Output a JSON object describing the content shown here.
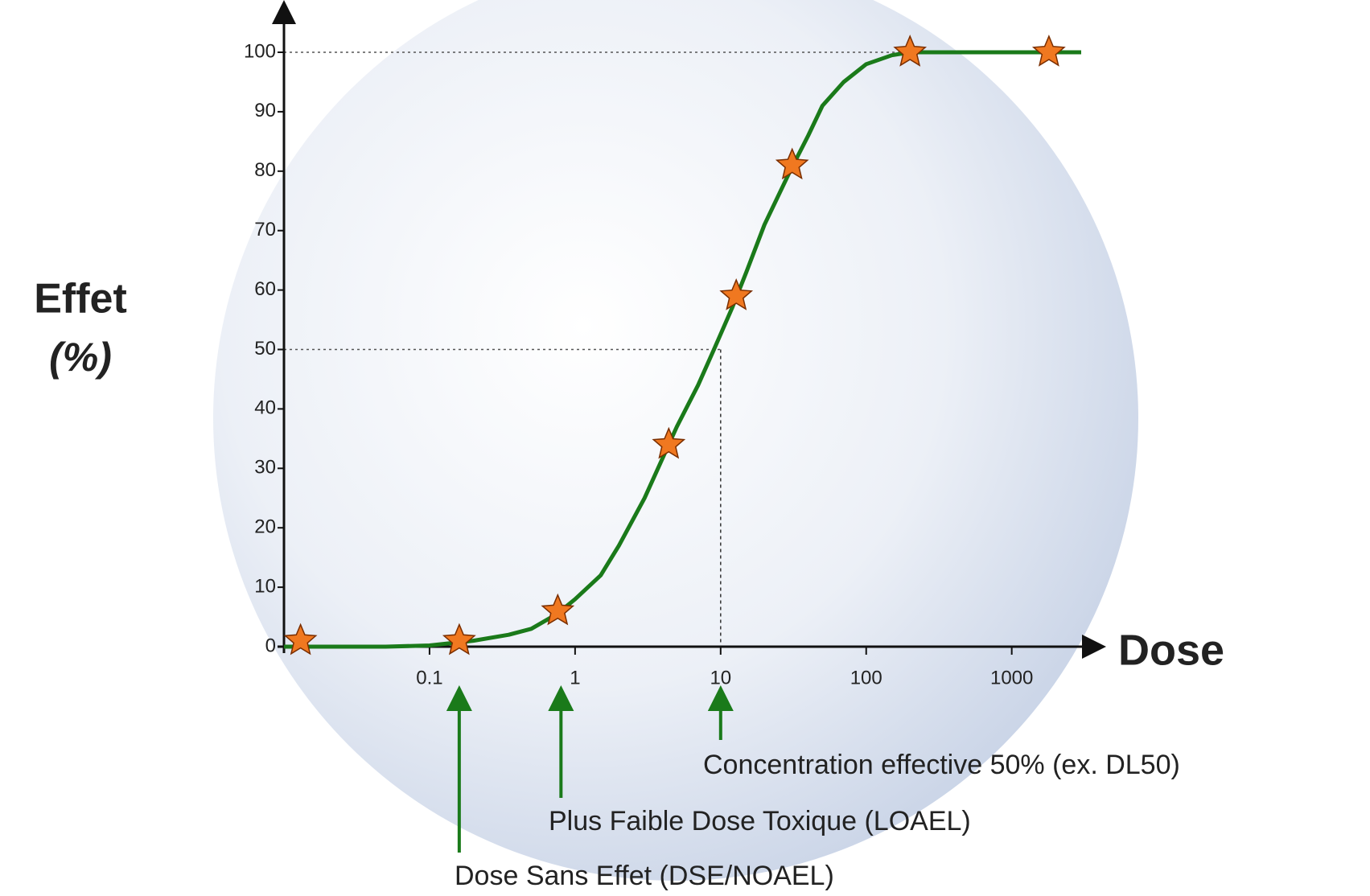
{
  "chart_data": {
    "type": "line",
    "y_label": [
      "Effet",
      "(%)"
    ],
    "x_label": "Dose",
    "log_x": true,
    "xlim": [
      0.01,
      3000
    ],
    "ylim": [
      0,
      100
    ],
    "xticks": [
      0.1,
      1,
      10,
      100,
      1000
    ],
    "yticks": [
      0,
      10,
      20,
      30,
      40,
      50,
      60,
      70,
      80,
      90,
      100
    ],
    "series": [
      {
        "color": "#1a7a1a",
        "x": [
          0.01,
          0.05,
          0.1,
          0.2,
          0.35,
          0.5,
          0.75,
          1,
          1.5,
          2,
          3,
          5,
          7,
          9,
          12,
          15,
          20,
          30,
          40,
          50,
          70,
          100,
          150,
          200,
          500,
          3000
        ],
        "values": [
          0,
          0,
          0.2,
          1,
          2,
          3,
          5.5,
          8,
          12,
          17,
          25,
          37,
          44,
          50,
          57,
          63,
          71,
          80,
          86,
          91,
          95,
          98,
          99.5,
          100,
          100,
          100
        ]
      },
      {
        "color": "#f07820",
        "marker": "star",
        "x": [
          0.013,
          0.16,
          0.76,
          4.4,
          12.8,
          31,
          200,
          1800
        ],
        "values": [
          1,
          1,
          6,
          34,
          59,
          81,
          100,
          100
        ]
      }
    ],
    "reference_lines": {
      "y": [
        100,
        50
      ],
      "x": 10
    },
    "annotations": [
      {
        "text": "Concentration effective 50% (ex. DL50)",
        "x": 10
      },
      {
        "text": "Plus Faible Dose Toxique (LOAEL)",
        "x": 0.8
      },
      {
        "text": "Dose Sans Effet (DSE/NOAEL)",
        "x": 0.16
      }
    ]
  }
}
